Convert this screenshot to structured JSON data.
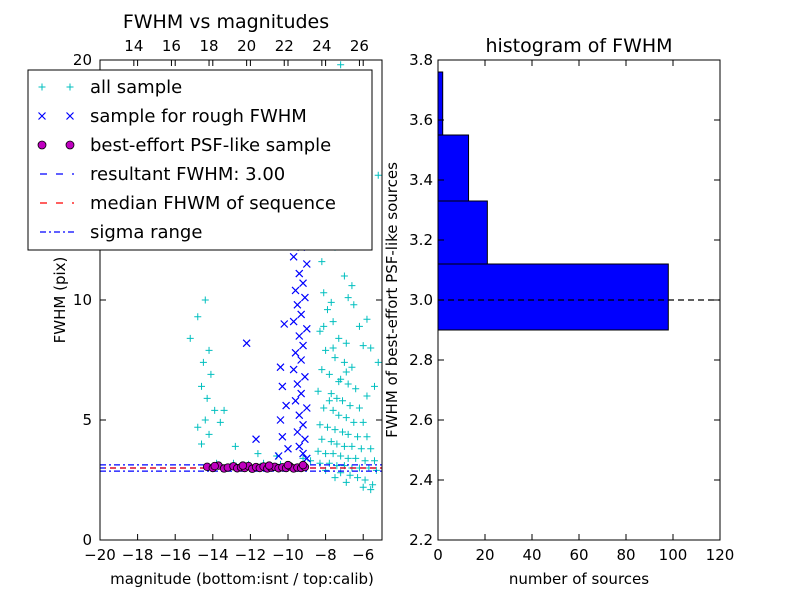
{
  "chart_data": [
    {
      "type": "scatter",
      "title": "FWHM vs magnitudes",
      "xlabel": "magnitude (bottom:isnt / top:calib)",
      "ylabel": "FWHM (pix)",
      "xlim": [
        -20,
        -5
      ],
      "ylim": [
        0,
        20
      ],
      "x_ticks": [
        -20,
        -18,
        -16,
        -14,
        -12,
        -10,
        -8,
        -6
      ],
      "x_tick_labels": [
        "−20",
        "−18",
        "−16",
        "−14",
        "−12",
        "−10",
        "−8",
        "−6"
      ],
      "y_ticks": [
        0,
        5,
        10,
        20
      ],
      "y_tick_labels": [
        "0",
        "5",
        "10",
        "20"
      ],
      "top_axis": {
        "ticks": [
          14,
          16,
          18,
          20,
          22,
          24,
          26
        ],
        "tick_labels": [
          "14",
          "16",
          "18",
          "20",
          "22",
          "24",
          "26"
        ],
        "offset": 32.2
      },
      "grid": false,
      "legend_location": "upper-left",
      "legend": [
        {
          "label": "all sample",
          "marker": "plus",
          "color": "#00bfbf"
        },
        {
          "label": "sample for rough FWHM",
          "marker": "x",
          "color": "#0000ff"
        },
        {
          "label": "best-effort PSF-like sample",
          "marker": "circle",
          "color": "#bf00bf"
        },
        {
          "label": "resultant FWHM: 3.00",
          "line": "dashed",
          "color": "#0000ff"
        },
        {
          "label": "median FHWM of sequence",
          "line": "dashed",
          "color": "#ff0000"
        },
        {
          "label": "sigma range",
          "line": "dashdot",
          "color": "#0000ff"
        }
      ],
      "series": [
        {
          "name": "all sample",
          "points": [
            [
              -14.4,
              10.0
            ],
            [
              -14.8,
              9.3
            ],
            [
              -15.2,
              8.4
            ],
            [
              -14.2,
              7.9
            ],
            [
              -14.5,
              7.4
            ],
            [
              -14.1,
              6.9
            ],
            [
              -14.6,
              6.4
            ],
            [
              -14.3,
              5.9
            ],
            [
              -13.9,
              5.4
            ],
            [
              -14.4,
              5.0
            ],
            [
              -14.8,
              4.7
            ],
            [
              -14.2,
              4.4
            ],
            [
              -14.6,
              4.0
            ],
            [
              -13.4,
              5.4
            ],
            [
              -13.6,
              4.9
            ],
            [
              -12.8,
              3.9
            ],
            [
              -11.6,
              3.6
            ],
            [
              -10.6,
              3.5
            ],
            [
              -9.2,
              3.4
            ],
            [
              -8.8,
              3.3
            ],
            [
              -13.8,
              3.2
            ],
            [
              -12.9,
              3.2
            ],
            [
              -12.1,
              3.15
            ],
            [
              -11.3,
              3.2
            ],
            [
              -10.4,
              3.15
            ],
            [
              -7.2,
              19.8
            ],
            [
              -7.0,
              19.3
            ],
            [
              -5.2,
              15.2
            ],
            [
              -8.1,
              18.3
            ],
            [
              -7.8,
              16.3
            ],
            [
              -8.2,
              15.6
            ],
            [
              -7.4,
              14.6
            ],
            [
              -8.3,
              13.8
            ],
            [
              -7.9,
              13.0
            ],
            [
              -7.5,
              12.2
            ],
            [
              -8.2,
              11.6
            ],
            [
              -7.0,
              11.0
            ],
            [
              -6.8,
              10.1
            ],
            [
              -6.5,
              9.8
            ],
            [
              -6.2,
              8.9
            ],
            [
              -6.0,
              8.1
            ],
            [
              -5.6,
              8.0
            ],
            [
              -5.2,
              7.4
            ],
            [
              -5.4,
              6.4
            ],
            [
              -5.8,
              6.0
            ],
            [
              -8.1,
              10.3
            ],
            [
              -7.9,
              9.6
            ],
            [
              -7.6,
              9.1
            ],
            [
              -8.3,
              8.7
            ],
            [
              -7.3,
              8.4
            ],
            [
              -6.9,
              8.2
            ],
            [
              -8.0,
              7.9
            ],
            [
              -7.5,
              7.6
            ],
            [
              -7.0,
              7.4
            ],
            [
              -6.6,
              7.2
            ],
            [
              -8.2,
              7.1
            ],
            [
              -7.8,
              6.9
            ],
            [
              -7.2,
              6.7
            ],
            [
              -6.8,
              6.5
            ],
            [
              -6.4,
              6.3
            ],
            [
              -8.4,
              6.2
            ],
            [
              -7.7,
              6.1
            ],
            [
              -7.4,
              5.9
            ],
            [
              -7.1,
              5.8
            ],
            [
              -6.7,
              5.6
            ],
            [
              -6.2,
              5.5
            ],
            [
              -8.1,
              5.5
            ],
            [
              -7.6,
              5.4
            ],
            [
              -7.3,
              5.2
            ],
            [
              -6.9,
              5.1
            ],
            [
              -6.5,
              4.9
            ],
            [
              -6.0,
              4.9
            ],
            [
              -8.3,
              4.8
            ],
            [
              -7.9,
              4.7
            ],
            [
              -7.5,
              4.6
            ],
            [
              -7.1,
              4.5
            ],
            [
              -6.8,
              4.4
            ],
            [
              -6.3,
              4.3
            ],
            [
              -5.8,
              4.3
            ],
            [
              -8.2,
              4.2
            ],
            [
              -7.7,
              4.1
            ],
            [
              -7.4,
              4.0
            ],
            [
              -7.0,
              3.9
            ],
            [
              -6.6,
              3.9
            ],
            [
              -6.1,
              3.8
            ],
            [
              -5.6,
              3.8
            ],
            [
              -8.4,
              3.7
            ],
            [
              -8.0,
              3.6
            ],
            [
              -7.6,
              3.6
            ],
            [
              -7.2,
              3.5
            ],
            [
              -6.8,
              3.4
            ],
            [
              -6.4,
              3.4
            ],
            [
              -5.9,
              3.3
            ],
            [
              -5.4,
              3.3
            ],
            [
              -8.3,
              3.2
            ],
            [
              -7.8,
              3.2
            ],
            [
              -7.4,
              3.1
            ],
            [
              -7.0,
              3.1
            ],
            [
              -6.6,
              3.0
            ],
            [
              -6.2,
              3.0
            ],
            [
              -5.7,
              3.0
            ],
            [
              -5.3,
              2.9
            ],
            [
              -7.2,
              2.8
            ],
            [
              -6.7,
              2.7
            ],
            [
              -6.3,
              2.6
            ],
            [
              -5.9,
              2.5
            ],
            [
              -5.5,
              2.3
            ],
            [
              -6.9,
              2.4
            ],
            [
              -7.5,
              2.6
            ],
            [
              -8.0,
              2.9
            ],
            [
              -6.0,
              2.2
            ],
            [
              -5.6,
              2.1
            ],
            [
              -7.8,
              5.8
            ],
            [
              -7.3,
              6.6
            ],
            [
              -6.9,
              7.0
            ],
            [
              -7.6,
              8.0
            ],
            [
              -8.1,
              8.9
            ],
            [
              -7.7,
              9.9
            ],
            [
              -8.3,
              12.6
            ],
            [
              -7.1,
              12.8
            ],
            [
              -6.6,
              10.6
            ],
            [
              -5.8,
              9.2
            ]
          ]
        },
        {
          "name": "sample for rough FWHM",
          "points": [
            [
              -9.6,
              14.2
            ],
            [
              -9.2,
              14.0
            ],
            [
              -9.4,
              13.5
            ],
            [
              -9.8,
              13.2
            ],
            [
              -9.1,
              12.9
            ],
            [
              -9.5,
              12.6
            ],
            [
              -9.3,
              12.2
            ],
            [
              -9.7,
              11.8
            ],
            [
              -9.0,
              11.5
            ],
            [
              -9.4,
              11.1
            ],
            [
              -9.2,
              10.7
            ],
            [
              -9.6,
              10.4
            ],
            [
              -9.1,
              10.1
            ],
            [
              -9.5,
              9.8
            ],
            [
              -9.3,
              9.4
            ],
            [
              -9.7,
              9.1
            ],
            [
              -9.0,
              8.8
            ],
            [
              -9.4,
              8.5
            ],
            [
              -9.2,
              8.1
            ],
            [
              -9.6,
              7.8
            ],
            [
              -9.3,
              7.5
            ],
            [
              -9.7,
              7.1
            ],
            [
              -9.1,
              6.8
            ],
            [
              -9.5,
              6.5
            ],
            [
              -9.3,
              6.1
            ],
            [
              -9.6,
              5.8
            ],
            [
              -9.0,
              5.5
            ],
            [
              -9.4,
              5.2
            ],
            [
              -9.2,
              4.8
            ],
            [
              -9.5,
              4.5
            ],
            [
              -9.1,
              4.2
            ],
            [
              -9.4,
              3.9
            ],
            [
              -9.2,
              3.6
            ],
            [
              -9.0,
              3.4
            ],
            [
              -10.2,
              9.0
            ],
            [
              -10.4,
              7.2
            ],
            [
              -10.3,
              6.4
            ],
            [
              -10.1,
              5.6
            ],
            [
              -10.4,
              5.0
            ],
            [
              -10.3,
              4.3
            ],
            [
              -10.0,
              3.8
            ],
            [
              -10.5,
              3.5
            ],
            [
              -12.2,
              8.2
            ],
            [
              -11.7,
              4.2
            ],
            [
              -9.8,
              15.6
            ],
            [
              -10.0,
              12.7
            ]
          ]
        },
        {
          "name": "best-effort PSF-like sample",
          "points": [
            [
              -14.3,
              3.05
            ],
            [
              -14.0,
              3.0
            ],
            [
              -13.7,
              3.1
            ],
            [
              -13.4,
              2.98
            ],
            [
              -13.2,
              3.02
            ],
            [
              -12.9,
              3.07
            ],
            [
              -12.7,
              2.99
            ],
            [
              -12.5,
              3.03
            ],
            [
              -12.3,
              3.0
            ],
            [
              -12.1,
              3.08
            ],
            [
              -11.9,
              2.97
            ],
            [
              -11.7,
              3.04
            ],
            [
              -11.5,
              3.0
            ],
            [
              -11.3,
              3.06
            ],
            [
              -11.1,
              2.98
            ],
            [
              -10.9,
              3.02
            ],
            [
              -10.7,
              3.05
            ],
            [
              -10.5,
              2.99
            ],
            [
              -10.3,
              3.03
            ],
            [
              -10.1,
              3.0
            ],
            [
              -9.9,
              3.07
            ],
            [
              -9.7,
              2.98
            ],
            [
              -9.5,
              3.02
            ],
            [
              -9.3,
              3.0
            ],
            [
              -9.1,
              3.04
            ],
            [
              -13.9,
              3.08
            ],
            [
              -12.4,
              3.1
            ],
            [
              -11.0,
              3.1
            ],
            [
              -10.0,
              3.12
            ],
            [
              -9.2,
              3.12
            ]
          ]
        }
      ],
      "lines": [
        {
          "name": "resultant FWHM: 3.00",
          "y": 3.0
        },
        {
          "name": "median FHWM of sequence",
          "y": 3.0
        },
        {
          "name": "sigma range",
          "y": [
            2.87,
            3.13
          ]
        }
      ]
    },
    {
      "type": "bar",
      "orientation": "horizontal",
      "title": "histogram of FWHM",
      "xlabel": "number of sources",
      "ylabel": "FWHM of best-effort PSF-like sources",
      "xlim": [
        0,
        120
      ],
      "ylim": [
        2.2,
        3.8
      ],
      "x_ticks": [
        0,
        20,
        40,
        60,
        80,
        100,
        120
      ],
      "x_tick_labels": [
        "0",
        "20",
        "40",
        "60",
        "80",
        "100",
        "120"
      ],
      "y_ticks": [
        2.2,
        2.4,
        2.6,
        2.8,
        3.0,
        3.2,
        3.4,
        3.6,
        3.8
      ],
      "y_tick_labels": [
        "2.2",
        "2.4",
        "2.6",
        "2.8",
        "3.0",
        "3.2",
        "3.4",
        "3.6",
        "3.8"
      ],
      "grid": false,
      "color": "#0000ff",
      "bins": [
        {
          "low": 2.9,
          "high": 3.12,
          "count": 98
        },
        {
          "low": 3.12,
          "high": 3.33,
          "count": 21
        },
        {
          "low": 3.33,
          "high": 3.55,
          "count": 13
        },
        {
          "low": 3.55,
          "high": 3.76,
          "count": 2
        }
      ],
      "reference_line": {
        "y": 3.0
      }
    }
  ]
}
